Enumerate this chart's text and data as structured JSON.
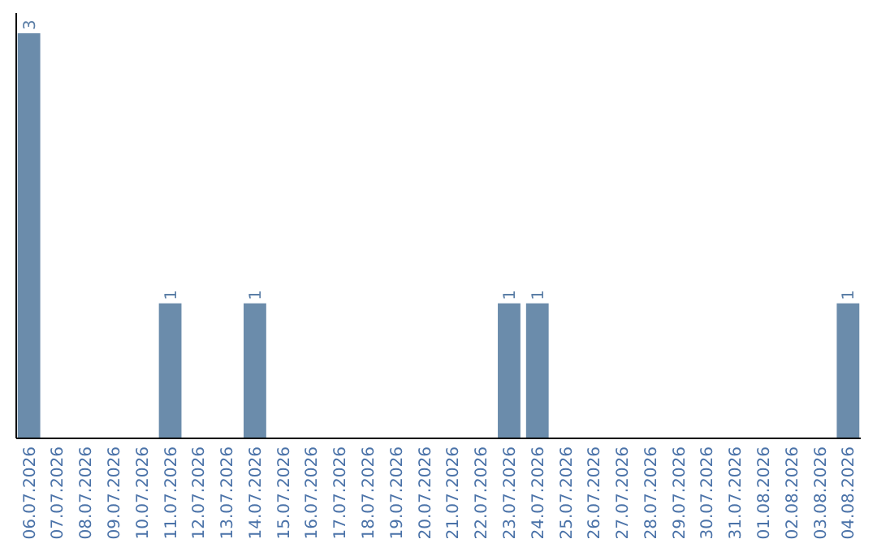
{
  "chart_data": {
    "type": "bar",
    "categories": [
      "06.07.2026",
      "07.07.2026",
      "08.07.2026",
      "09.07.2026",
      "10.07.2026",
      "11.07.2026",
      "12.07.2026",
      "13.07.2026",
      "14.07.2026",
      "15.07.2026",
      "16.07.2026",
      "17.07.2026",
      "18.07.2026",
      "19.07.2026",
      "20.07.2026",
      "21.07.2026",
      "22.07.2026",
      "23.07.2026",
      "24.07.2026",
      "25.07.2026",
      "26.07.2026",
      "27.07.2026",
      "28.07.2026",
      "29.07.2026",
      "30.07.2026",
      "31.07.2026",
      "01.08.2026",
      "02.08.2026",
      "03.08.2026",
      "04.08.2026"
    ],
    "values": [
      3,
      0,
      0,
      0,
      0,
      1,
      0,
      0,
      1,
      0,
      0,
      0,
      0,
      0,
      0,
      0,
      0,
      1,
      1,
      0,
      0,
      0,
      0,
      0,
      0,
      0,
      0,
      0,
      0,
      1
    ],
    "value_labels": [
      "3",
      null,
      null,
      null,
      null,
      "1",
      null,
      null,
      "1",
      null,
      null,
      null,
      null,
      null,
      null,
      null,
      null,
      "1",
      "1",
      null,
      null,
      null,
      null,
      null,
      null,
      null,
      null,
      null,
      null,
      "1"
    ],
    "color": "#6b8cab"
  }
}
